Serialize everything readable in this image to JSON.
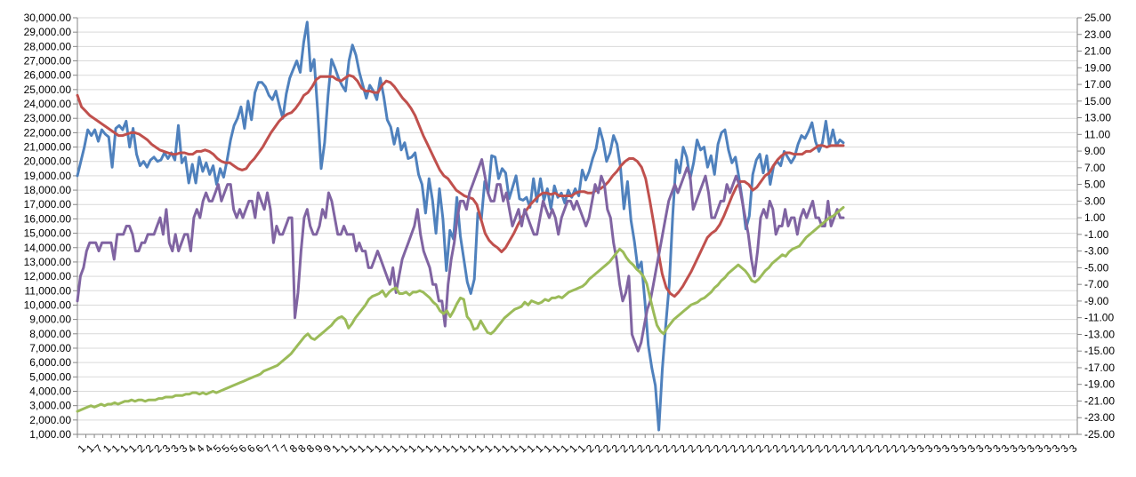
{
  "chart_data": {
    "type": "line",
    "title": "",
    "xlabel": "",
    "ylabel": "",
    "grid": true,
    "legend": "none",
    "y_left": {
      "range": [
        1000,
        30000
      ],
      "step": 1000,
      "tick_labels": [
        "1,000.00",
        "2,000.00",
        "3,000.00",
        "4,000.00",
        "5,000.00",
        "6,000.00",
        "7,000.00",
        "8,000.00",
        "9,000.00",
        "10,000.00",
        "11,000.00",
        "12,000.00",
        "13,000.00",
        "14,000.00",
        "15,000.00",
        "16,000.00",
        "17,000.00",
        "18,000.00",
        "19,000.00",
        "20,000.00",
        "21,000.00",
        "22,000.00",
        "23,000.00",
        "24,000.00",
        "25,000.00",
        "26,000.00",
        "27,000.00",
        "28,000.00",
        "29,000.00",
        "30,000.00"
      ]
    },
    "y_right": {
      "range": [
        -25,
        25
      ],
      "step": 2,
      "tick_labels": [
        "-25.00",
        "-23.00",
        "-21.00",
        "-19.00",
        "-17.00",
        "-15.00",
        "-13.00",
        "-11.00",
        "-9.00",
        "-7.00",
        "-5.00",
        "-3.00",
        "-1.00",
        "1.00",
        "3.00",
        "5.00",
        "7.00",
        "9.00",
        "11.00",
        "13.00",
        "15.00",
        "17.00",
        "19.00",
        "21.00",
        "23.00",
        "25.00"
      ]
    },
    "x_axis": {
      "tick_labels": [
        "1",
        "1",
        "7",
        "1",
        "1",
        "1",
        "1",
        "2",
        "2",
        "2",
        "3",
        "3",
        "3",
        "4",
        "4",
        "4",
        "5",
        "5",
        "5",
        "6",
        "6",
        "6",
        "7",
        "7",
        "7",
        "8",
        "8",
        "8",
        "9",
        "9",
        "1",
        "1",
        "1",
        "1",
        "1",
        "1",
        "1",
        "1",
        "1",
        "1",
        "1",
        "1",
        "1",
        "1",
        "1",
        "1",
        "1",
        "1",
        "1",
        "1",
        "1",
        "1",
        "1",
        "1",
        "1",
        "1",
        "1",
        "1",
        "1",
        "1",
        "2",
        "2",
        "2",
        "2",
        "2",
        "2",
        "2",
        "2",
        "2",
        "2",
        "2",
        "2",
        "2",
        "2",
        "2",
        "2",
        "2",
        "2",
        "2",
        "2",
        "2",
        "2",
        "2",
        "2",
        "2",
        "2",
        "2",
        "2",
        "2",
        "2",
        "2",
        "2",
        "2",
        "2",
        "2",
        "2",
        "2",
        "2",
        "3",
        "3",
        "3",
        "3",
        "3",
        "3",
        "3",
        "3",
        "3",
        "3",
        "3",
        "3",
        "3",
        "3",
        "3",
        "3",
        "3",
        "3",
        "3",
        "3"
      ]
    },
    "series": [
      {
        "axis": "left",
        "color": "#4f81bd",
        "values": [
          19000,
          20000,
          21000,
          22200,
          21800,
          22200,
          21400,
          22200,
          21900,
          21700,
          19600,
          22300,
          22500,
          22200,
          22800,
          21000,
          22300,
          20500,
          19700,
          20000,
          19600,
          20100,
          20300,
          20000,
          20100,
          20600,
          20200,
          20600,
          20100,
          22500,
          19900,
          20300,
          18500,
          19800,
          18500,
          20300,
          19300,
          19900,
          19100,
          19700,
          18400,
          19500,
          18900,
          20100,
          21500,
          22500,
          23000,
          23800,
          22300,
          24200,
          22900,
          24800,
          25500,
          25500,
          25200,
          24600,
          24300,
          24900,
          23900,
          23000,
          24700,
          25800,
          26400,
          27000,
          26200,
          28300,
          29700,
          26300,
          27100,
          23600,
          19500,
          21300,
          24600,
          27100,
          26500,
          25800,
          25300,
          24900,
          27000,
          28100,
          27400,
          26200,
          25300,
          24400,
          25300,
          24900,
          24300,
          25800,
          24500,
          22900,
          22400,
          21200,
          22300,
          20800,
          21300,
          20200,
          20300,
          20600,
          19100,
          18400,
          16400,
          18800,
          17300,
          15000,
          18100,
          16000,
          12400,
          15200,
          14600,
          17500,
          14800,
          13200,
          11600,
          10800,
          11800,
          16400,
          15900,
          18600,
          17800,
          20400,
          20300,
          18800,
          19500,
          19200,
          17400,
          18200,
          19000,
          17400,
          17300,
          17500,
          16800,
          18800,
          17200,
          18800,
          17300,
          18100,
          16700,
          18300,
          17500,
          17800,
          17100,
          18000,
          17500,
          18100,
          17600,
          19400,
          18700,
          19300,
          20200,
          20900,
          22300,
          21400,
          20000,
          20600,
          21800,
          21200,
          19600,
          16700,
          18600,
          15900,
          14400,
          12500,
          13000,
          10300,
          7200,
          5600,
          4400,
          1300,
          5500,
          8600,
          11400,
          16200,
          20100,
          19200,
          21000,
          20300,
          18800,
          19900,
          21500,
          20800,
          21000,
          19600,
          20400,
          19100,
          21200,
          22000,
          22200,
          20800,
          19900,
          20300,
          18900,
          17300,
          15300,
          16200,
          19100,
          20100,
          20500,
          19200,
          20400,
          18400,
          19700,
          20000,
          19700,
          20700,
          20300,
          19900,
          20300,
          21200,
          21800,
          21600,
          22100,
          22700,
          21400,
          20700,
          21300,
          22800,
          21100,
          22200,
          21100,
          21500,
          21300
        ]
      },
      {
        "axis": "left",
        "color": "#c0504d",
        "values": [
          24600,
          23800,
          23500,
          23200,
          23000,
          22800,
          22600,
          22400,
          22200,
          22000,
          21800,
          21800,
          21900,
          22000,
          22000,
          21900,
          21700,
          21500,
          21200,
          21000,
          20800,
          20700,
          20600,
          20500,
          20500,
          20600,
          20600,
          20500,
          20500,
          20700,
          20700,
          20800,
          20700,
          20500,
          20200,
          20000,
          19900,
          19900,
          19700,
          19500,
          19400,
          19500,
          19900,
          20200,
          20600,
          21000,
          21500,
          22000,
          22400,
          22800,
          23100,
          23300,
          23400,
          23700,
          24100,
          24600,
          24800,
          25200,
          25700,
          25900,
          25900,
          25900,
          25900,
          25700,
          25600,
          25800,
          26000,
          25900,
          25600,
          25100,
          24900,
          24900,
          24800,
          24800,
          25300,
          25600,
          25500,
          25200,
          24800,
          24400,
          24100,
          23700,
          23200,
          22500,
          21800,
          21200,
          20600,
          20000,
          19400,
          19000,
          18800,
          18400,
          18000,
          17800,
          17600,
          17500,
          17400,
          17000,
          16000,
          15000,
          14500,
          14200,
          14000,
          13700,
          14000,
          14500,
          15000,
          15600,
          16100,
          16600,
          17000,
          17300,
          17600,
          17800,
          17800,
          17700,
          17800,
          17600,
          17600,
          17600,
          17600,
          17800,
          17900,
          17900,
          17800,
          17800,
          18000,
          18100,
          18300,
          18600,
          19000,
          19300,
          19700,
          20000,
          20200,
          20200,
          20000,
          19600,
          18800,
          17300,
          15600,
          13800,
          12200,
          11200,
          10800,
          10600,
          10900,
          11300,
          11800,
          12300,
          12900,
          13500,
          14100,
          14700,
          15000,
          15200,
          15600,
          16200,
          16900,
          17600,
          18200,
          18600,
          18600,
          18400,
          18000,
          18200,
          18600,
          19000,
          19200,
          19700,
          20100,
          20400,
          20600,
          20600,
          20500,
          20500,
          20500,
          20700,
          20700,
          20900,
          21100,
          21100,
          21000,
          21100,
          21100,
          21100,
          21100
        ]
      },
      {
        "axis": "right",
        "color": "#8064a2",
        "values": [
          -9,
          -6,
          -5,
          -3,
          -2,
          -2,
          -2,
          -3,
          -2,
          -2,
          -2,
          -2,
          -4,
          -1,
          -1,
          -1,
          0,
          0,
          -1,
          -3,
          -3,
          -2,
          -2,
          -1,
          -1,
          -1,
          0,
          1,
          -1,
          2,
          -2,
          -3,
          -1,
          -3,
          -2,
          -1,
          -1,
          -3,
          1,
          2,
          1,
          3,
          4,
          3,
          3,
          4,
          5,
          3,
          4,
          5,
          5,
          2,
          1,
          2,
          1,
          2,
          3,
          3,
          1,
          4,
          3,
          2,
          4,
          2,
          -2,
          0,
          -1,
          -1,
          0,
          1,
          1,
          -11,
          -8,
          -3,
          1,
          2,
          0,
          -1,
          -1,
          0,
          2,
          1,
          4,
          3,
          1,
          -1,
          -1,
          0,
          -1,
          -1,
          -1,
          -3,
          -2,
          -3,
          -3,
          -5,
          -5,
          -4,
          -3,
          -4,
          -5,
          -6,
          -7,
          -5,
          -8,
          -6,
          -4,
          -3,
          -2,
          -1,
          0,
          2,
          -1,
          -3,
          -4,
          -5,
          -7,
          -7,
          -9,
          -9,
          -12,
          -7,
          -4,
          -2,
          1,
          3,
          3,
          2,
          4,
          5,
          6,
          7,
          8,
          6,
          4,
          3,
          3,
          5,
          5,
          3,
          4,
          2,
          0,
          1,
          2,
          0,
          2,
          1,
          0,
          -1,
          -1,
          1,
          3,
          2,
          1,
          2,
          1,
          -1,
          1,
          2,
          3,
          3,
          2,
          3,
          2,
          1,
          0,
          1,
          3,
          5,
          4,
          6,
          5,
          2,
          1,
          -2,
          -4,
          -7,
          -9,
          -8,
          -6,
          -13,
          -14,
          -15,
          -14,
          -12,
          -10,
          -9,
          -7,
          -5,
          -3,
          -1,
          1,
          3,
          4,
          5,
          4,
          5,
          6,
          7,
          6,
          2,
          3,
          4,
          5,
          6,
          4,
          1,
          1,
          2,
          3,
          3,
          5,
          4,
          5,
          6,
          5,
          3,
          1,
          -1,
          -4,
          -6,
          -3,
          1,
          2,
          1,
          3,
          2,
          -1,
          0,
          0,
          2,
          0,
          1,
          1,
          -1,
          1,
          2,
          1,
          2,
          3,
          1,
          1,
          0,
          0,
          3,
          0,
          1,
          2,
          1,
          1
        ]
      },
      {
        "axis": "left",
        "color": "#9bbb59",
        "values": [
          2600,
          2700,
          2800,
          2900,
          3000,
          2900,
          3000,
          3100,
          3000,
          3100,
          3100,
          3200,
          3100,
          3200,
          3300,
          3300,
          3400,
          3300,
          3400,
          3400,
          3300,
          3400,
          3400,
          3400,
          3500,
          3500,
          3600,
          3600,
          3600,
          3700,
          3700,
          3700,
          3800,
          3800,
          3900,
          3900,
          3800,
          3900,
          3800,
          3900,
          4000,
          3900,
          4000,
          4100,
          4200,
          4300,
          4400,
          4500,
          4600,
          4700,
          4800,
          4900,
          5000,
          5100,
          5200,
          5400,
          5500,
          5600,
          5700,
          5800,
          6000,
          6200,
          6400,
          6600,
          6900,
          7200,
          7500,
          7800,
          8000,
          7700,
          7600,
          7800,
          8000,
          8200,
          8400,
          8600,
          8900,
          9100,
          9200,
          9000,
          8400,
          8700,
          9100,
          9400,
          9700,
          10000,
          10400,
          10600,
          10700,
          10800,
          11000,
          10600,
          10900,
          11100,
          11200,
          10800,
          10800,
          10900,
          10700,
          10900,
          10900,
          11000,
          10900,
          10700,
          10500,
          10200,
          10000,
          9600,
          9400,
          9600,
          9200,
          9600,
          10100,
          10500,
          10400,
          9200,
          8900,
          8300,
          8400,
          8900,
          8500,
          8100,
          8000,
          8200,
          8500,
          8800,
          9100,
          9300,
          9500,
          9700,
          9800,
          9900,
          10200,
          10000,
          10300,
          10200,
          10100,
          10200,
          10400,
          10300,
          10500,
          10500,
          10600,
          10500,
          10700,
          10900,
          11000,
          11100,
          11200,
          11300,
          11500,
          11800,
          12000,
          12200,
          12400,
          12600,
          12800,
          13000,
          13300,
          13600,
          13900,
          13700,
          13300,
          13000,
          12800,
          12500,
          12300,
          12000,
          11500,
          10500,
          9500,
          8600,
          8200,
          8000,
          8400,
          8700,
          9000,
          9200,
          9400,
          9600,
          9800,
          10000,
          10100,
          10200,
          10400,
          10500,
          10700,
          10900,
          11200,
          11400,
          11700,
          11900,
          12200,
          12400,
          12600,
          12800,
          12600,
          12400,
          12100,
          11700,
          11600,
          11800,
          12100,
          12400,
          12600,
          12900,
          13100,
          13300,
          13500,
          13400,
          13700,
          13900,
          14000,
          14100,
          14400,
          14700,
          14900,
          15100,
          15300,
          15500,
          15700,
          15900,
          16100,
          16200,
          16400,
          16600,
          16800
        ]
      }
    ]
  }
}
